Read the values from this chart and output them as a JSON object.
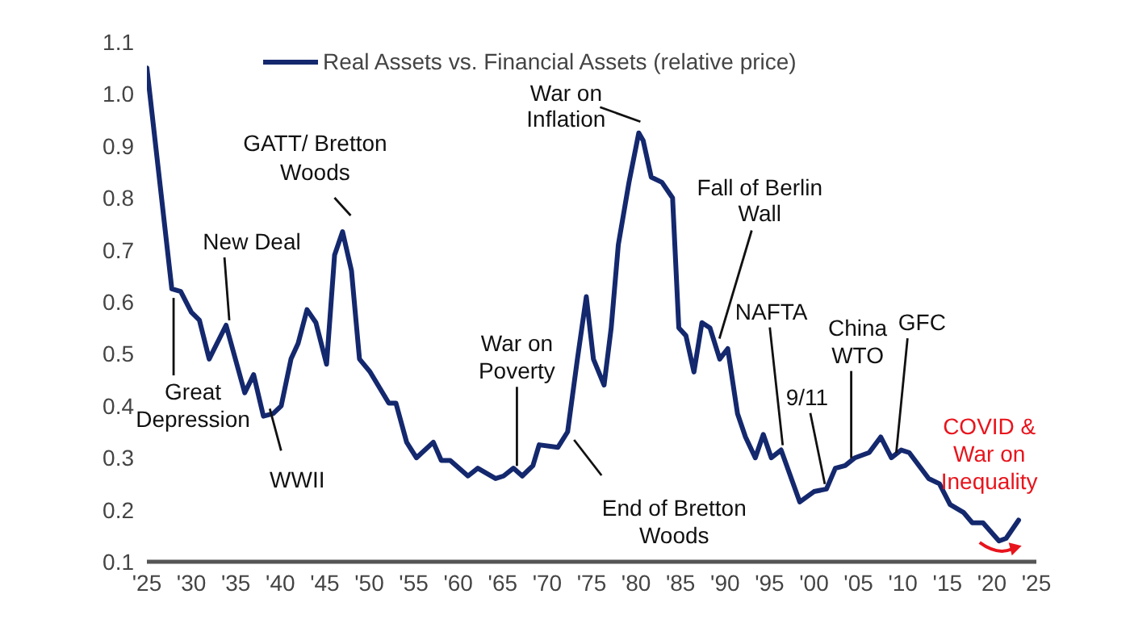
{
  "chart_data": {
    "type": "line",
    "x": [
      1925,
      1927.8,
      1928.8,
      1930,
      1930.9,
      1932,
      1933.9,
      1936,
      1937,
      1938.1,
      1939.2,
      1940.1,
      1941.2,
      1942,
      1943,
      1944,
      1945.2,
      1946.1,
      1947,
      1948,
      1948.9,
      1950.1,
      1952.2,
      1953,
      1954.2,
      1955.3,
      1957.2,
      1958.1,
      1959.1,
      1961.1,
      1962.2,
      1964.2,
      1965.1,
      1966.2,
      1967.2,
      1968.4,
      1969.1,
      1971.2,
      1972.3,
      1973.4,
      1974.4,
      1975.2,
      1976.4,
      1977.2,
      1978,
      1979.2,
      1980.3,
      1980.8,
      1981.7,
      1982.9,
      1984.1,
      1984.8,
      1985.6,
      1986.5,
      1987.4,
      1988.3,
      1989.4,
      1990.3,
      1991.4,
      1992.3,
      1993.4,
      1994.3,
      1995.2,
      1996.3,
      1998.4,
      2000,
      2001.4,
      2002.4,
      2003.5,
      2004.6,
      2006.2,
      2007.5,
      2008.7,
      2009.8,
      2010.7,
      2012.9,
      2014.1,
      2015.3,
      2016.8,
      2017.8,
      2019,
      2020.8,
      2021.6,
      2023
    ],
    "series": [
      {
        "name": "Real Assets vs. Financial Assets (relative price)",
        "color": "#14286e",
        "values": [
          1.05,
          0.625,
          0.62,
          0.58,
          0.565,
          0.49,
          0.555,
          0.425,
          0.46,
          0.38,
          0.385,
          0.4,
          0.49,
          0.52,
          0.585,
          0.56,
          0.48,
          0.69,
          0.735,
          0.66,
          0.49,
          0.465,
          0.405,
          0.405,
          0.33,
          0.3,
          0.33,
          0.295,
          0.295,
          0.265,
          0.28,
          0.26,
          0.265,
          0.28,
          0.265,
          0.285,
          0.325,
          0.32,
          0.35,
          0.49,
          0.61,
          0.49,
          0.44,
          0.55,
          0.71,
          0.83,
          0.925,
          0.91,
          0.84,
          0.83,
          0.8,
          0.55,
          0.535,
          0.465,
          0.56,
          0.55,
          0.49,
          0.51,
          0.385,
          0.34,
          0.3,
          0.345,
          0.3,
          0.315,
          0.215,
          0.235,
          0.24,
          0.28,
          0.285,
          0.3,
          0.31,
          0.34,
          0.3,
          0.315,
          0.31,
          0.26,
          0.25,
          0.21,
          0.195,
          0.175,
          0.175,
          0.14,
          0.145,
          0.18
        ]
      }
    ],
    "xlim": [
      1925,
      2025
    ],
    "xticks": [
      {
        "value": 1925,
        "label": "'25"
      },
      {
        "value": 1930,
        "label": "'30"
      },
      {
        "value": 1935,
        "label": "'35"
      },
      {
        "value": 1940,
        "label": "'40"
      },
      {
        "value": 1945,
        "label": "'45"
      },
      {
        "value": 1950,
        "label": "'50"
      },
      {
        "value": 1955,
        "label": "'55"
      },
      {
        "value": 1960,
        "label": "'60"
      },
      {
        "value": 1965,
        "label": "'65"
      },
      {
        "value": 1970,
        "label": "'70"
      },
      {
        "value": 1975,
        "label": "'75"
      },
      {
        "value": 1980,
        "label": "'80"
      },
      {
        "value": 1985,
        "label": "'85"
      },
      {
        "value": 1990,
        "label": "'90"
      },
      {
        "value": 1995,
        "label": "'95"
      },
      {
        "value": 2000,
        "label": "'00"
      },
      {
        "value": 2005,
        "label": "'05"
      },
      {
        "value": 2010,
        "label": "'10"
      },
      {
        "value": 2015,
        "label": "'15"
      },
      {
        "value": 2020,
        "label": "'20"
      },
      {
        "value": 2025,
        "label": "'25"
      }
    ],
    "ylim": [
      0.1,
      1.1
    ],
    "yticks": [
      0.1,
      0.2,
      0.3,
      0.4,
      0.5,
      0.6,
      0.7,
      0.8,
      0.9,
      {
        "value": 1.0,
        "label": "1.0"
      },
      {
        "value": 1.1,
        "label": "1.1"
      }
    ],
    "grid": false,
    "legend": "top",
    "marker": "none",
    "line_style": "solid",
    "annotations": [
      {
        "text": "Great Depression",
        "x": 1928,
        "y": 0.62
      },
      {
        "text": "New Deal",
        "x": 1933.9,
        "y": 0.555
      },
      {
        "text": "WWII",
        "x": 1939,
        "y": 0.385
      },
      {
        "text": "GATT/ Bretton Woods",
        "x": 1947,
        "y": 0.735
      },
      {
        "text": "War on Poverty",
        "x": 1966.6,
        "y": 0.275
      },
      {
        "text": "End of Bretton Woods",
        "x": 1972.3,
        "y": 0.35
      },
      {
        "text": "War on Inflation",
        "x": 1980.3,
        "y": 0.925
      },
      {
        "text": "Fall of Berlin Wall",
        "x": 1989,
        "y": 0.52
      },
      {
        "text": "NAFTA",
        "x": 1996.3,
        "y": 0.315
      },
      {
        "text": "9/11",
        "x": 2001.4,
        "y": 0.24
      },
      {
        "text": "China WTO",
        "x": 2004,
        "y": 0.29
      },
      {
        "text": "GFC",
        "x": 2008.7,
        "y": 0.3
      },
      {
        "text": "COVID & War on Inequality",
        "x": 2020.8,
        "y": 0.14
      }
    ]
  }
}
